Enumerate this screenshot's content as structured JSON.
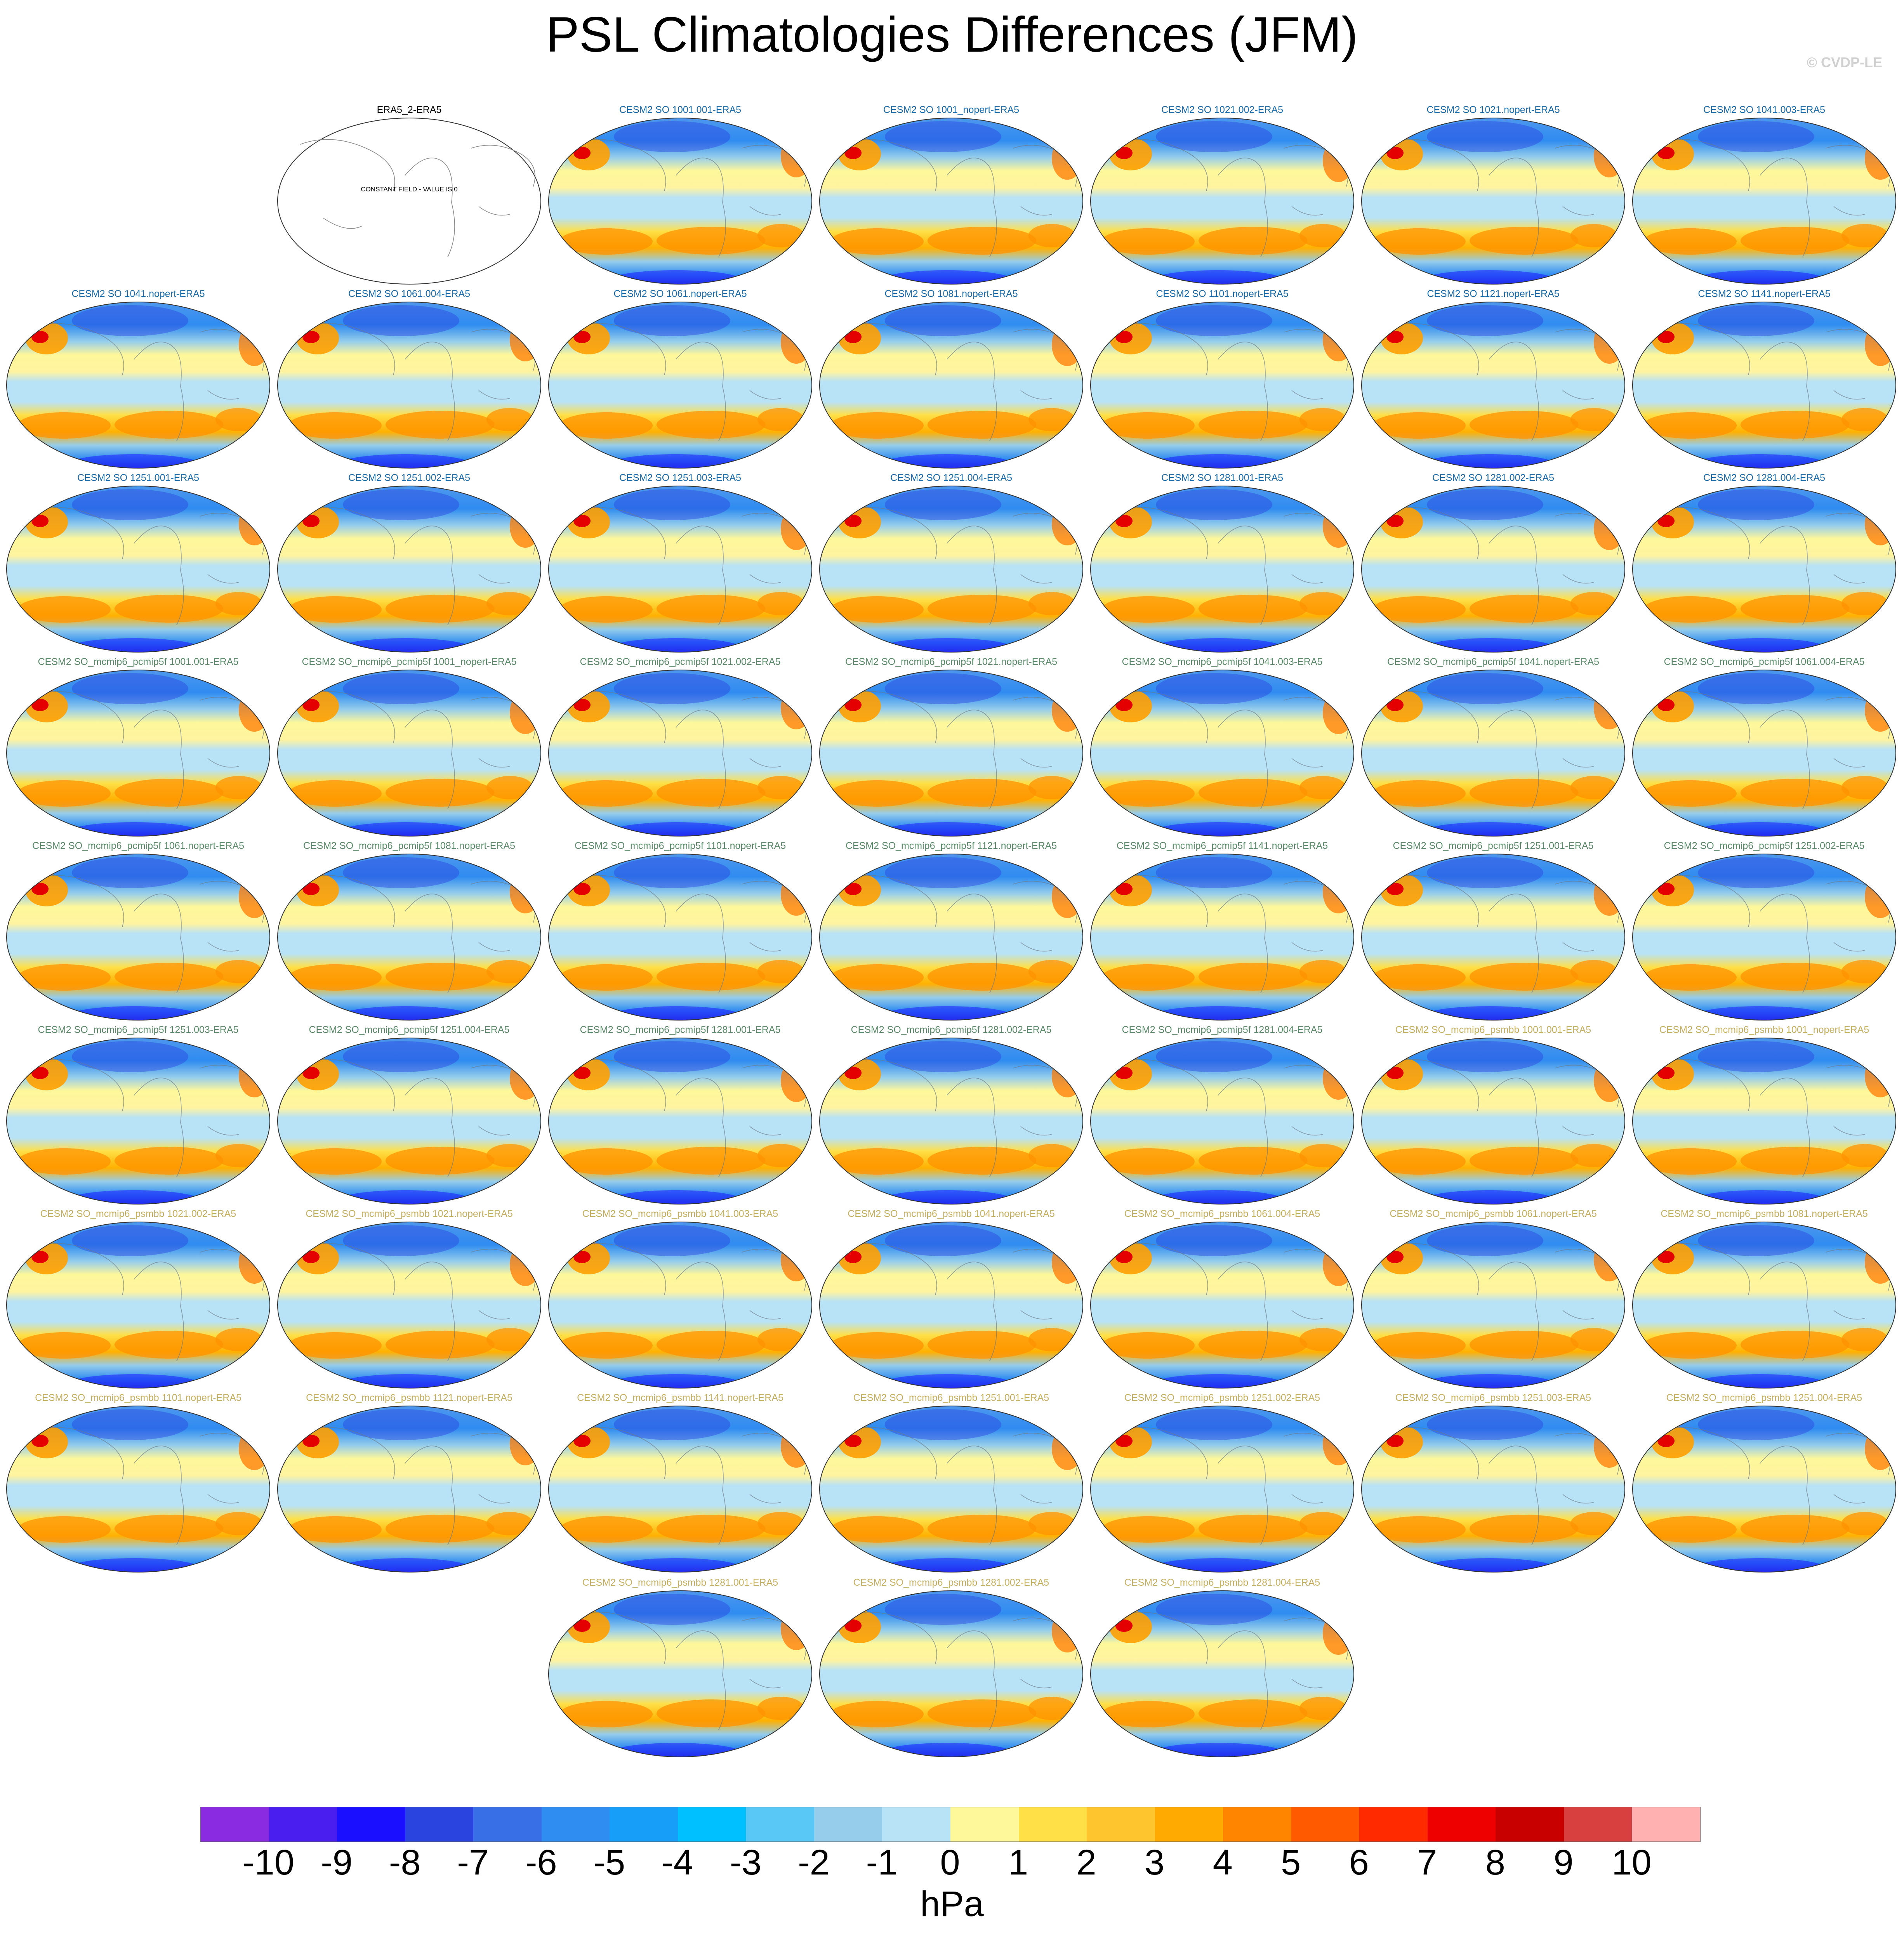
{
  "title": "PSL Climatologies Differences (JFM)",
  "credit": "© CVDP-LE",
  "colorbar": {
    "units": "hPa",
    "ticks": [
      "-10",
      "-9",
      "-8",
      "-7",
      "-6",
      "-5",
      "-4",
      "-3",
      "-2",
      "-1",
      "0",
      "1",
      "2",
      "3",
      "4",
      "5",
      "6",
      "7",
      "8",
      "9",
      "10"
    ],
    "colors": [
      "#8a2be2",
      "#4b1ef0",
      "#1a10ff",
      "#2a44e0",
      "#386ee6",
      "#2f8cf0",
      "#179ef8",
      "#00c0ff",
      "#5ac8f6",
      "#96cdeb",
      "#b8e2f6",
      "#fff89a",
      "#ffe047",
      "#ffc52e",
      "#ffaa00",
      "#ff8400",
      "#ff5a00",
      "#ff2a00",
      "#ee0000",
      "#c80000",
      "#d84040",
      "#ffb0b0"
    ]
  },
  "reference_panel": {
    "title": "ERA5_2-ERA5",
    "label": "CONSTANT FIELD - VALUE IS 0"
  },
  "groups": {
    "SO": {
      "color": "#1a6aa8"
    },
    "pcmip5f": {
      "color": "#5b8a6a"
    },
    "psmbb": {
      "color": "#c4b060"
    }
  },
  "panels": [
    {
      "title": "CESM2 SO 1001.001-ERA5",
      "group": "SO"
    },
    {
      "title": "CESM2 SO 1001_nopert-ERA5",
      "group": "SO"
    },
    {
      "title": "CESM2 SO 1021.002-ERA5",
      "group": "SO"
    },
    {
      "title": "CESM2 SO 1021.nopert-ERA5",
      "group": "SO"
    },
    {
      "title": "CESM2 SO 1041.003-ERA5",
      "group": "SO"
    },
    {
      "title": "CESM2 SO 1041.nopert-ERA5",
      "group": "SO"
    },
    {
      "title": "CESM2 SO 1061.004-ERA5",
      "group": "SO"
    },
    {
      "title": "CESM2 SO 1061.nopert-ERA5",
      "group": "SO"
    },
    {
      "title": "CESM2 SO 1081.nopert-ERA5",
      "group": "SO"
    },
    {
      "title": "CESM2 SO 1101.nopert-ERA5",
      "group": "SO"
    },
    {
      "title": "CESM2 SO 1121.nopert-ERA5",
      "group": "SO"
    },
    {
      "title": "CESM2 SO 1141.nopert-ERA5",
      "group": "SO"
    },
    {
      "title": "CESM2 SO 1251.001-ERA5",
      "group": "SO"
    },
    {
      "title": "CESM2 SO 1251.002-ERA5",
      "group": "SO"
    },
    {
      "title": "CESM2 SO 1251.003-ERA5",
      "group": "SO"
    },
    {
      "title": "CESM2 SO 1251.004-ERA5",
      "group": "SO"
    },
    {
      "title": "CESM2 SO 1281.001-ERA5",
      "group": "SO"
    },
    {
      "title": "CESM2 SO 1281.002-ERA5",
      "group": "SO"
    },
    {
      "title": "CESM2 SO 1281.004-ERA5",
      "group": "SO"
    },
    {
      "title": "CESM2 SO_mcmip6_pcmip5f 1001.001-ERA5",
      "group": "pcmip5f"
    },
    {
      "title": "CESM2 SO_mcmip6_pcmip5f 1001_nopert-ERA5",
      "group": "pcmip5f"
    },
    {
      "title": "CESM2 SO_mcmip6_pcmip5f 1021.002-ERA5",
      "group": "pcmip5f"
    },
    {
      "title": "CESM2 SO_mcmip6_pcmip5f 1021.nopert-ERA5",
      "group": "pcmip5f"
    },
    {
      "title": "CESM2 SO_mcmip6_pcmip5f 1041.003-ERA5",
      "group": "pcmip5f"
    },
    {
      "title": "CESM2 SO_mcmip6_pcmip5f 1041.nopert-ERA5",
      "group": "pcmip5f"
    },
    {
      "title": "CESM2 SO_mcmip6_pcmip5f 1061.004-ERA5",
      "group": "pcmip5f"
    },
    {
      "title": "CESM2 SO_mcmip6_pcmip5f 1061.nopert-ERA5",
      "group": "pcmip5f"
    },
    {
      "title": "CESM2 SO_mcmip6_pcmip5f 1081.nopert-ERA5",
      "group": "pcmip5f"
    },
    {
      "title": "CESM2 SO_mcmip6_pcmip5f 1101.nopert-ERA5",
      "group": "pcmip5f"
    },
    {
      "title": "CESM2 SO_mcmip6_pcmip5f 1121.nopert-ERA5",
      "group": "pcmip5f"
    },
    {
      "title": "CESM2 SO_mcmip6_pcmip5f 1141.nopert-ERA5",
      "group": "pcmip5f"
    },
    {
      "title": "CESM2 SO_mcmip6_pcmip5f 1251.001-ERA5",
      "group": "pcmip5f"
    },
    {
      "title": "CESM2 SO_mcmip6_pcmip5f 1251.002-ERA5",
      "group": "pcmip5f"
    },
    {
      "title": "CESM2 SO_mcmip6_pcmip5f 1251.003-ERA5",
      "group": "pcmip5f"
    },
    {
      "title": "CESM2 SO_mcmip6_pcmip5f 1251.004-ERA5",
      "group": "pcmip5f"
    },
    {
      "title": "CESM2 SO_mcmip6_pcmip5f 1281.001-ERA5",
      "group": "pcmip5f"
    },
    {
      "title": "CESM2 SO_mcmip6_pcmip5f 1281.002-ERA5",
      "group": "pcmip5f"
    },
    {
      "title": "CESM2 SO_mcmip6_pcmip5f 1281.004-ERA5",
      "group": "pcmip5f"
    },
    {
      "title": "CESM2 SO_mcmip6_psmbb 1001.001-ERA5",
      "group": "psmbb"
    },
    {
      "title": "CESM2 SO_mcmip6_psmbb 1001_nopert-ERA5",
      "group": "psmbb"
    },
    {
      "title": "CESM2 SO_mcmip6_psmbb 1021.002-ERA5",
      "group": "psmbb"
    },
    {
      "title": "CESM2 SO_mcmip6_psmbb 1021.nopert-ERA5",
      "group": "psmbb"
    },
    {
      "title": "CESM2 SO_mcmip6_psmbb 1041.003-ERA5",
      "group": "psmbb"
    },
    {
      "title": "CESM2 SO_mcmip6_psmbb 1041.nopert-ERA5",
      "group": "psmbb"
    },
    {
      "title": "CESM2 SO_mcmip6_psmbb 1061.004-ERA5",
      "group": "psmbb"
    },
    {
      "title": "CESM2 SO_mcmip6_psmbb 1061.nopert-ERA5",
      "group": "psmbb"
    },
    {
      "title": "CESM2 SO_mcmip6_psmbb 1081.nopert-ERA5",
      "group": "psmbb"
    },
    {
      "title": "CESM2 SO_mcmip6_psmbb 1101.nopert-ERA5",
      "group": "psmbb"
    },
    {
      "title": "CESM2 SO_mcmip6_psmbb 1121.nopert-ERA5",
      "group": "psmbb"
    },
    {
      "title": "CESM2 SO_mcmip6_psmbb 1141.nopert-ERA5",
      "group": "psmbb"
    },
    {
      "title": "CESM2 SO_mcmip6_psmbb 1251.001-ERA5",
      "group": "psmbb"
    },
    {
      "title": "CESM2 SO_mcmip6_psmbb 1251.002-ERA5",
      "group": "psmbb"
    },
    {
      "title": "CESM2 SO_mcmip6_psmbb 1251.003-ERA5",
      "group": "psmbb"
    },
    {
      "title": "CESM2 SO_mcmip6_psmbb 1251.004-ERA5",
      "group": "psmbb"
    },
    {
      "title": "CESM2 SO_mcmip6_psmbb 1281.001-ERA5",
      "group": "psmbb"
    },
    {
      "title": "CESM2 SO_mcmip6_psmbb 1281.002-ERA5",
      "group": "psmbb"
    },
    {
      "title": "CESM2 SO_mcmip6_psmbb 1281.004-ERA5",
      "group": "psmbb"
    }
  ]
}
